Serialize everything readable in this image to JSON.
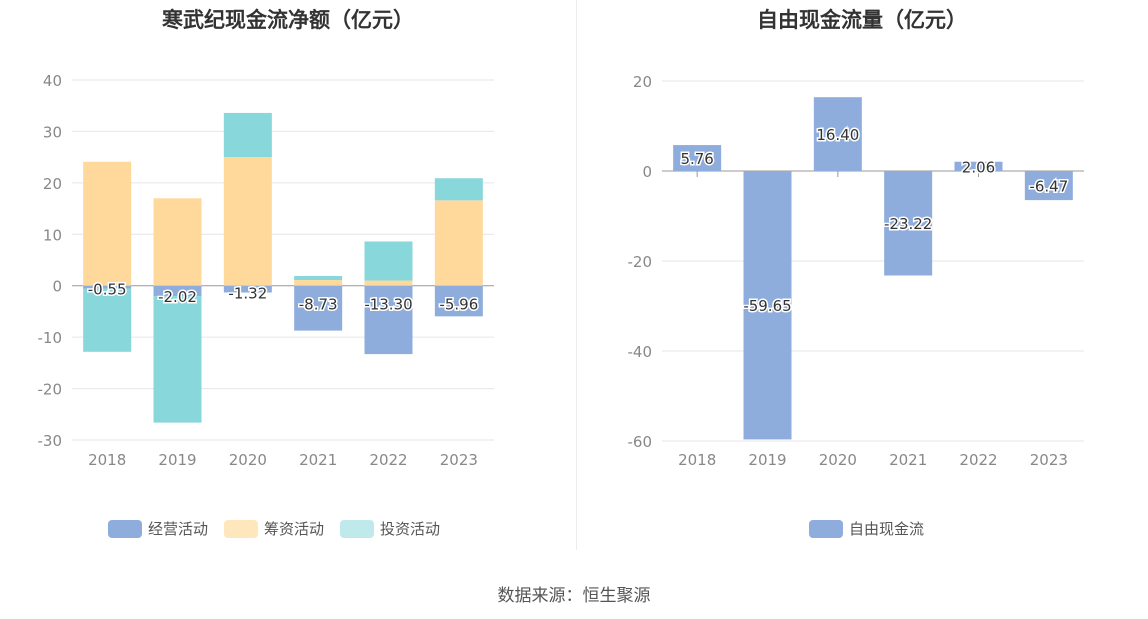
{
  "source": "数据来源：恒生聚源",
  "chart_data": [
    {
      "type": "bar",
      "stacked": true,
      "title": "寒武纪现金流净额（亿元）",
      "categories": [
        "2018",
        "2019",
        "2020",
        "2021",
        "2022",
        "2023"
      ],
      "ylim": [
        -30,
        40
      ],
      "yticks": [
        40,
        30,
        20,
        10,
        0,
        -10,
        -20,
        -30
      ],
      "grid": true,
      "legend_position": "bottom",
      "data_label_series": "经营活动",
      "series": [
        {
          "name": "经营活动",
          "color": "#8eaddc",
          "values": [
            -0.55,
            -2.02,
            -1.32,
            -8.73,
            -13.3,
            -5.96
          ]
        },
        {
          "name": "筹资活动",
          "color": "#ffd99b",
          "values": [
            24.1,
            17.0,
            25.0,
            1.1,
            1.0,
            16.6
          ]
        },
        {
          "name": "投资活动",
          "color": "#88d7da",
          "values": [
            -12.3,
            -24.6,
            8.6,
            0.8,
            7.6,
            4.3
          ]
        }
      ]
    },
    {
      "type": "bar",
      "title": "自由现金流量（亿元）",
      "categories": [
        "2018",
        "2019",
        "2020",
        "2021",
        "2022",
        "2023"
      ],
      "ylim": [
        -60,
        20
      ],
      "yticks": [
        20,
        0,
        -20,
        -40,
        -60
      ],
      "grid": true,
      "legend_position": "bottom",
      "series": [
        {
          "name": "自由现金流",
          "color": "#8eaddc",
          "values": [
            5.76,
            -59.65,
            16.4,
            -23.22,
            2.06,
            -6.47
          ]
        }
      ]
    }
  ]
}
